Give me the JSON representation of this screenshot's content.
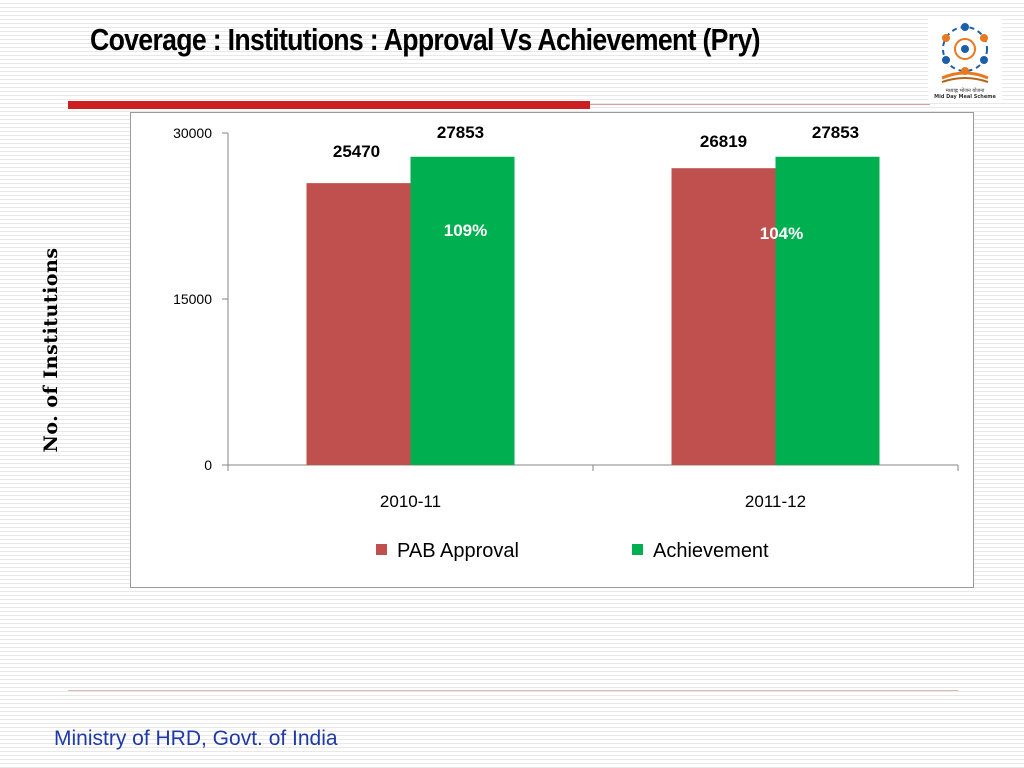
{
  "slide": {
    "title": "Coverage : Institutions : Approval Vs Achievement (Pry)",
    "footer": "Ministry of HRD, Govt. of India",
    "logo_text_hindi": "मध्याह्न भोजन योजना",
    "logo_text_english": "Mid Day Meal Scheme"
  },
  "chart_data": {
    "type": "bar",
    "title": "",
    "xlabel": "",
    "ylabel": "No. of Institutions",
    "categories": [
      "2010-11",
      "2011-12"
    ],
    "series": [
      {
        "name": "PAB Approval",
        "values": [
          25470,
          26819
        ],
        "color": "#c0504d"
      },
      {
        "name": "Achievement",
        "values": [
          27853,
          27853
        ],
        "color": "#00b050"
      }
    ],
    "percent_labels": [
      "109%",
      "104%"
    ],
    "ylim": [
      0,
      30000
    ],
    "yticks": [
      0,
      15000,
      30000
    ],
    "grid": false,
    "legend": "bottom"
  }
}
